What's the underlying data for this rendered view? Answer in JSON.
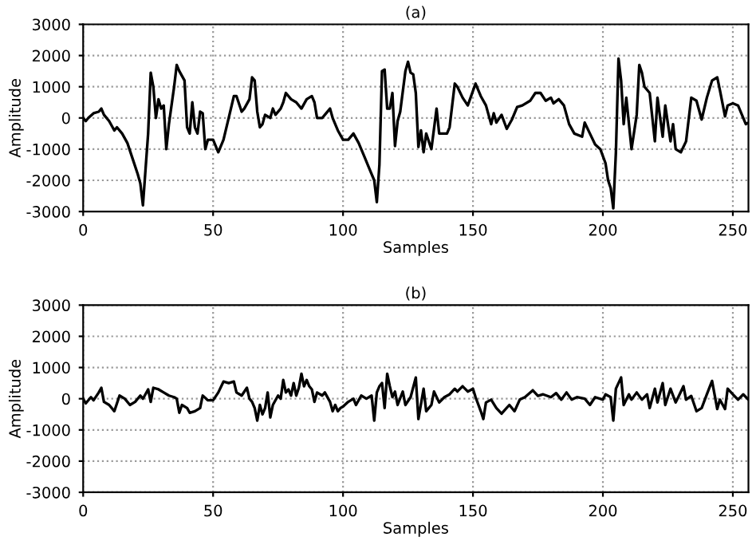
{
  "chart_data": [
    {
      "type": "line",
      "title": "(a)",
      "xlabel": "Samples",
      "ylabel": "Amplitude",
      "xlim": [
        0,
        256
      ],
      "ylim": [
        -3000,
        3000
      ],
      "xticks": [
        0,
        50,
        100,
        150,
        200,
        250
      ],
      "yticks": [
        -3000,
        -2000,
        -1000,
        0,
        1000,
        2000,
        3000
      ],
      "grid": true,
      "line_style": "solid",
      "series": [
        {
          "color": "#000000",
          "x": [
            0,
            1,
            2,
            4,
            6,
            7,
            8,
            10,
            12,
            13,
            15,
            17,
            19,
            21,
            22,
            23,
            25,
            26,
            27,
            28,
            29,
            30,
            31,
            32,
            33,
            35,
            36,
            37,
            39,
            40,
            41,
            42,
            43,
            44,
            45,
            46,
            47,
            48,
            50,
            52,
            54,
            56,
            58,
            59,
            61,
            62,
            64,
            65,
            66,
            67,
            68,
            69,
            70,
            72,
            73,
            74,
            76,
            77,
            78,
            80,
            82,
            84,
            86,
            88,
            89,
            90,
            92,
            93,
            95,
            96,
            98,
            100,
            102,
            104,
            106,
            108,
            110,
            112,
            113,
            114,
            115,
            116,
            117,
            118,
            119,
            120,
            121,
            122,
            124,
            125,
            126,
            127,
            128,
            129,
            130,
            131,
            132,
            134,
            136,
            137,
            140,
            141,
            143,
            144,
            146,
            148,
            151,
            153,
            155,
            157,
            158,
            159,
            161,
            163,
            165,
            167,
            169,
            172,
            174,
            176,
            178,
            180,
            181,
            183,
            185,
            187,
            189,
            192,
            193,
            195,
            197,
            199,
            201,
            202,
            203,
            204,
            205,
            206,
            207,
            208,
            209,
            211,
            213,
            214,
            215,
            216,
            218,
            220,
            221,
            223,
            224,
            226,
            227,
            228,
            230,
            232,
            234,
            236,
            238,
            240,
            242,
            244,
            245,
            247,
            248,
            250,
            252,
            255,
            256
          ],
          "values": [
            0,
            -100,
            0,
            150,
            200,
            300,
            100,
            -100,
            -400,
            -300,
            -500,
            -800,
            -1300,
            -1800,
            -2100,
            -2800,
            -500,
            1450,
            1000,
            0,
            600,
            300,
            400,
            -1000,
            -200,
            1000,
            1700,
            1500,
            1200,
            -300,
            -500,
            500,
            -300,
            -500,
            200,
            150,
            -1000,
            -700,
            -700,
            -1100,
            -700,
            0,
            700,
            700,
            200,
            300,
            600,
            1300,
            1200,
            200,
            -300,
            -200,
            100,
            0,
            300,
            100,
            300,
            500,
            800,
            600,
            500,
            300,
            600,
            700,
            500,
            0,
            0,
            100,
            300,
            0,
            -400,
            -700,
            -700,
            -500,
            -800,
            -1200,
            -1600,
            -2000,
            -2700,
            -1500,
            1500,
            1550,
            300,
            300,
            800,
            -900,
            -100,
            200,
            1500,
            1800,
            1450,
            1400,
            800,
            -930,
            -400,
            -1100,
            -500,
            -1000,
            300,
            -500,
            -500,
            -300,
            1100,
            1000,
            650,
            400,
            1100,
            700,
            400,
            -200,
            150,
            -150,
            100,
            -350,
            -50,
            350,
            400,
            550,
            800,
            800,
            550,
            650,
            470,
            600,
            400,
            -200,
            -500,
            -600,
            -150,
            -500,
            -850,
            -1000,
            -1450,
            -2000,
            -2250,
            -2900,
            -1100,
            1900,
            1200,
            -200,
            650,
            -1000,
            100,
            1700,
            1450,
            1000,
            800,
            -750,
            650,
            -600,
            400,
            -750,
            -200,
            -1000,
            -1100,
            -750,
            650,
            550,
            -50,
            650,
            1200,
            1300,
            900,
            50,
            400,
            470,
            400,
            -200,
            -150
          ]
        }
      ]
    },
    {
      "type": "line",
      "title": "(b)",
      "xlabel": "Samples",
      "ylabel": "Amplitude",
      "xlim": [
        0,
        256
      ],
      "ylim": [
        -3000,
        3000
      ],
      "xticks": [
        0,
        50,
        100,
        150,
        200,
        250
      ],
      "yticks": [
        -3000,
        -2000,
        -1000,
        0,
        1000,
        2000,
        3000
      ],
      "grid": true,
      "line_style": "solid",
      "series": [
        {
          "color": "#000000",
          "x": [
            0,
            1,
            3,
            4,
            6,
            7,
            8,
            10,
            12,
            14,
            16,
            18,
            20,
            22,
            23,
            25,
            26,
            27,
            29,
            31,
            33,
            35,
            36,
            37,
            38,
            40,
            41,
            43,
            45,
            46,
            48,
            50,
            52,
            54,
            56,
            58,
            59,
            61,
            63,
            64,
            65,
            66,
            67,
            68,
            69,
            70,
            71,
            72,
            73,
            75,
            76,
            77,
            78,
            79,
            80,
            81,
            82,
            83,
            84,
            85,
            86,
            87,
            88,
            89,
            90,
            92,
            93,
            95,
            96,
            97,
            98,
            99,
            100,
            102,
            104,
            105,
            107,
            109,
            111,
            112,
            113,
            114,
            115,
            116,
            117,
            118,
            119,
            120,
            121,
            123,
            124,
            126,
            128,
            129,
            131,
            132,
            134,
            135,
            137,
            139,
            141,
            143,
            144,
            146,
            148,
            150,
            151,
            153,
            154,
            155,
            157,
            159,
            161,
            164,
            166,
            168,
            170,
            173,
            175,
            177,
            180,
            182,
            184,
            186,
            188,
            190,
            193,
            195,
            197,
            200,
            201,
            203,
            204,
            205,
            207,
            208,
            210,
            211,
            213,
            215,
            217,
            218,
            220,
            221,
            223,
            224,
            226,
            228,
            229,
            231,
            232,
            234,
            236,
            238,
            240,
            242,
            244,
            245,
            247,
            248,
            250,
            252,
            254,
            256
          ],
          "values": [
            0,
            -150,
            50,
            -50,
            200,
            350,
            -100,
            -200,
            -400,
            100,
            0,
            -200,
            -100,
            100,
            0,
            300,
            -100,
            350,
            300,
            200,
            100,
            50,
            0,
            -450,
            -200,
            -300,
            -450,
            -400,
            -300,
            100,
            -50,
            -50,
            200,
            550,
            500,
            550,
            200,
            100,
            350,
            0,
            -100,
            -300,
            -700,
            -200,
            -500,
            -300,
            200,
            -600,
            -200,
            100,
            0,
            600,
            200,
            300,
            100,
            500,
            100,
            350,
            800,
            400,
            600,
            400,
            300,
            -100,
            200,
            100,
            200,
            -100,
            -400,
            -200,
            -400,
            -300,
            -250,
            -100,
            0,
            -200,
            100,
            0,
            100,
            -700,
            200,
            400,
            500,
            -300,
            800,
            400,
            50,
            230,
            -200,
            230,
            -200,
            50,
            680,
            -650,
            320,
            -400,
            -200,
            230,
            -120,
            50,
            140,
            320,
            230,
            400,
            230,
            320,
            50,
            -400,
            -650,
            -120,
            -30,
            -300,
            -480,
            -200,
            -400,
            -30,
            50,
            270,
            90,
            140,
            50,
            180,
            -30,
            200,
            -30,
            50,
            0,
            -200,
            50,
            -30,
            140,
            50,
            -700,
            320,
            680,
            -200,
            140,
            -30,
            200,
            -30,
            140,
            -300,
            320,
            -120,
            500,
            -200,
            320,
            -120,
            50,
            400,
            -30,
            90,
            -400,
            -300,
            140,
            570,
            -330,
            -30,
            -330,
            320,
            140,
            -30,
            140,
            -30
          ]
        }
      ]
    }
  ]
}
